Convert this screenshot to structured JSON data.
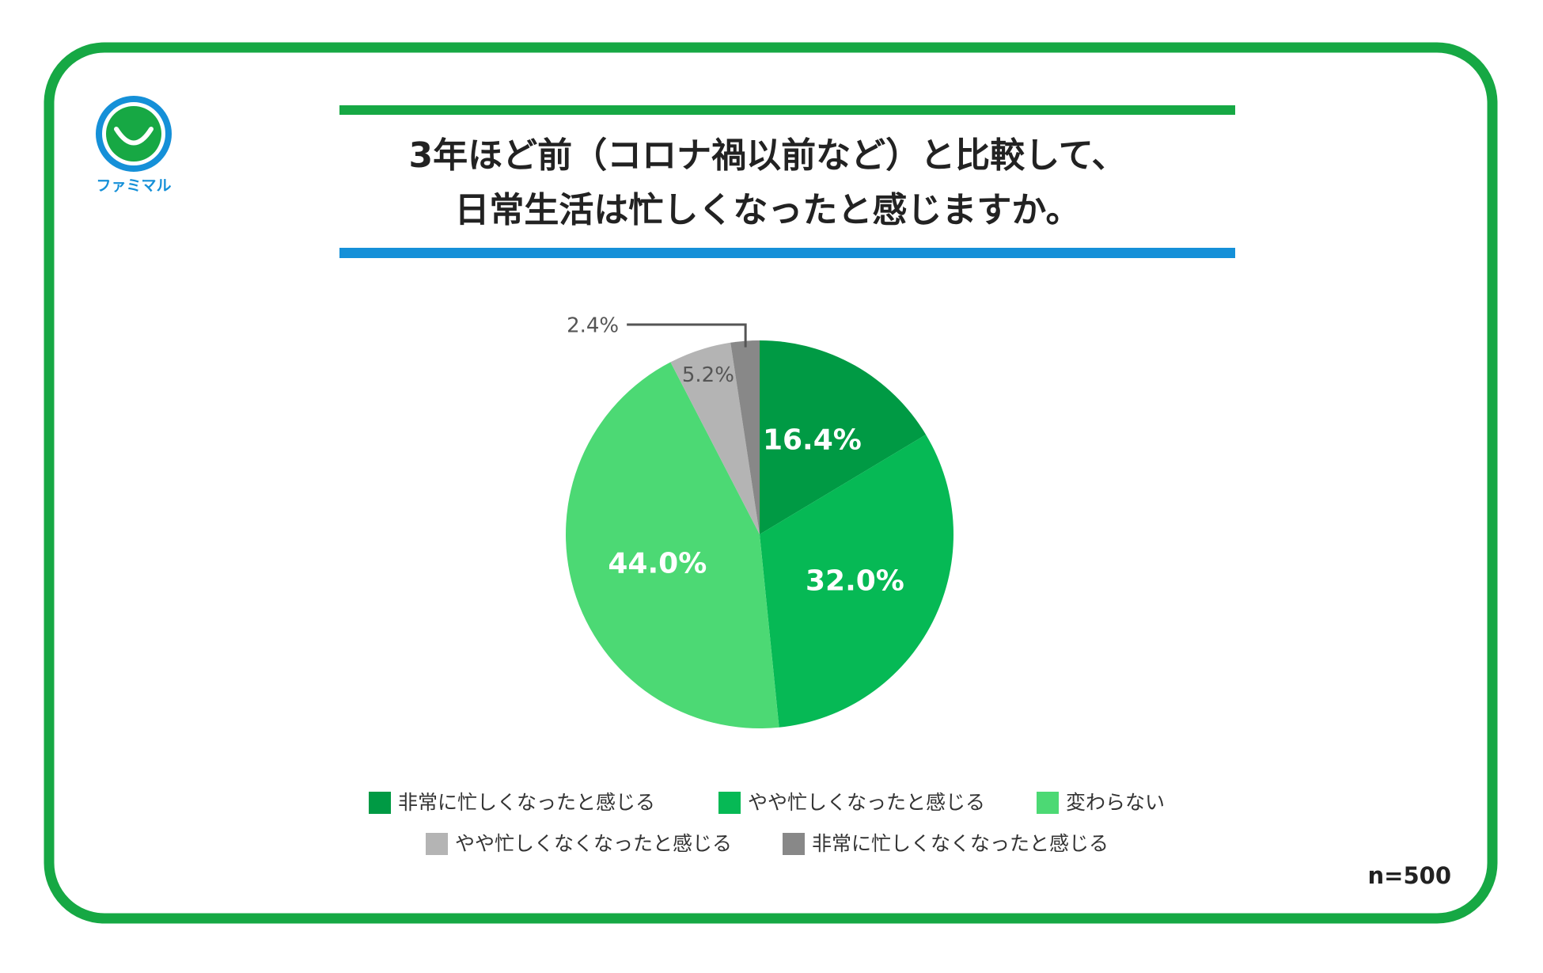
{
  "logo": "ファミマル",
  "chart_data": {
    "type": "pie",
    "title": [
      "3年ほど前（コロナ禍以前など）と比較して、",
      "日常生活は忙しくなったと感じますか。"
    ],
    "categories": [
      "非常に忙しくなったと感じる",
      "やや忙しくなったと感じる",
      "変わらない",
      "やや忙しくなくなったと感じる",
      "非常に忙しくなくなったと感じる"
    ],
    "values": [
      16.4,
      32.0,
      44.0,
      5.2,
      2.4
    ],
    "value_labels": [
      "16.4%",
      "32.0%",
      "44.0%",
      "5.2%",
      "2.4%"
    ],
    "colors": [
      "#009a44",
      "#06b955",
      "#4cd974",
      "#b4b4b4",
      "#888888"
    ],
    "note": "n=500"
  }
}
